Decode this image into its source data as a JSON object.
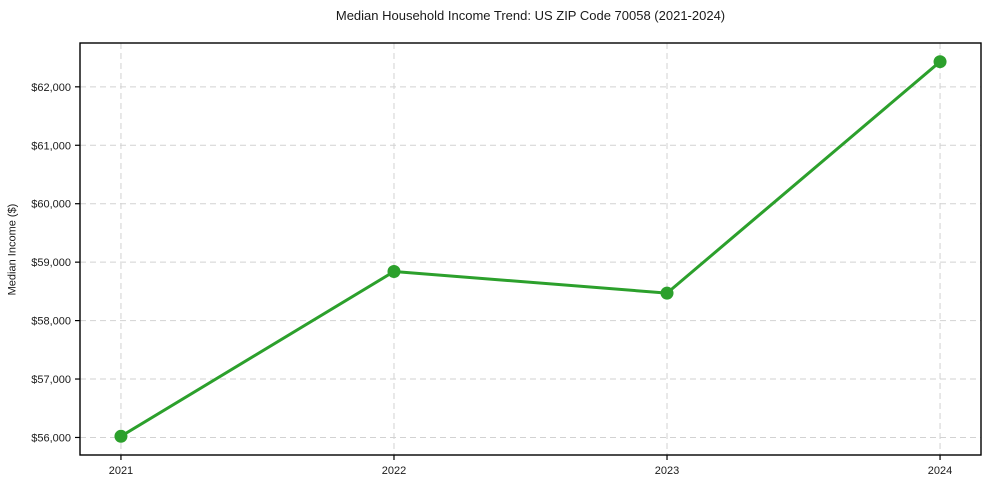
{
  "chart_data": {
    "type": "line",
    "title": "Median Household Income Trend: US ZIP Code 70058 (2021-2024)",
    "xlabel": "",
    "ylabel": "Median Income ($)",
    "categories": [
      "2021",
      "2022",
      "2023",
      "2024"
    ],
    "series": [
      {
        "name": "Median Income",
        "values": [
          56020,
          58840,
          58470,
          62430
        ]
      }
    ],
    "ylim": [
      55700,
      62750
    ],
    "yticks": [
      56000,
      57000,
      58000,
      59000,
      60000,
      61000,
      62000
    ],
    "ytick_labels": [
      "$56,000",
      "$57,000",
      "$58,000",
      "$59,000",
      "$60,000",
      "$61,000",
      "$62,000"
    ],
    "grid": true,
    "grid_style": "dashed",
    "legend_position": "none",
    "colors": {
      "line": "#2ca02c",
      "marker": "#2ca02c",
      "grid": "#d2d2d2",
      "spine": "#000000",
      "text": "#1a1a1a",
      "background": "#ffffff"
    }
  }
}
